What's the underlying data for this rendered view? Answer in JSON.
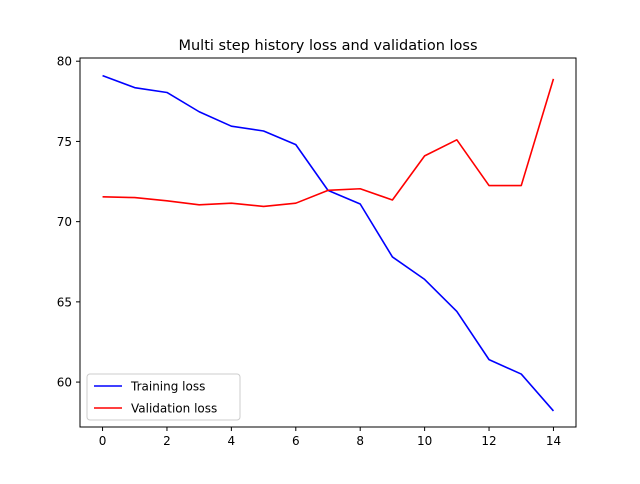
{
  "chart_data": {
    "type": "line",
    "title": "Multi step history loss and validation loss",
    "xlabel": "",
    "ylabel": "",
    "xlim": [
      -0.7,
      14.7
    ],
    "ylim": [
      57.2,
      80.2
    ],
    "x_ticks": [
      0,
      2,
      4,
      6,
      8,
      10,
      12,
      14
    ],
    "y_ticks": [
      60,
      65,
      70,
      75,
      80
    ],
    "grid": false,
    "legend": {
      "position": "lower-left"
    },
    "x": [
      0,
      1,
      2,
      3,
      4,
      5,
      6,
      7,
      8,
      9,
      10,
      11,
      12,
      13,
      14
    ],
    "series": [
      {
        "name": "Training loss",
        "color": "#0000ff",
        "values": [
          79.1,
          78.35,
          78.05,
          76.85,
          75.95,
          75.65,
          74.8,
          71.95,
          71.1,
          67.8,
          66.4,
          64.4,
          61.4,
          60.5,
          58.2
        ]
      },
      {
        "name": "Validation loss",
        "color": "#ff0000",
        "values": [
          71.55,
          71.5,
          71.3,
          71.05,
          71.15,
          70.95,
          71.15,
          71.95,
          72.05,
          71.35,
          74.1,
          75.1,
          72.25,
          72.25,
          78.9
        ]
      }
    ]
  }
}
